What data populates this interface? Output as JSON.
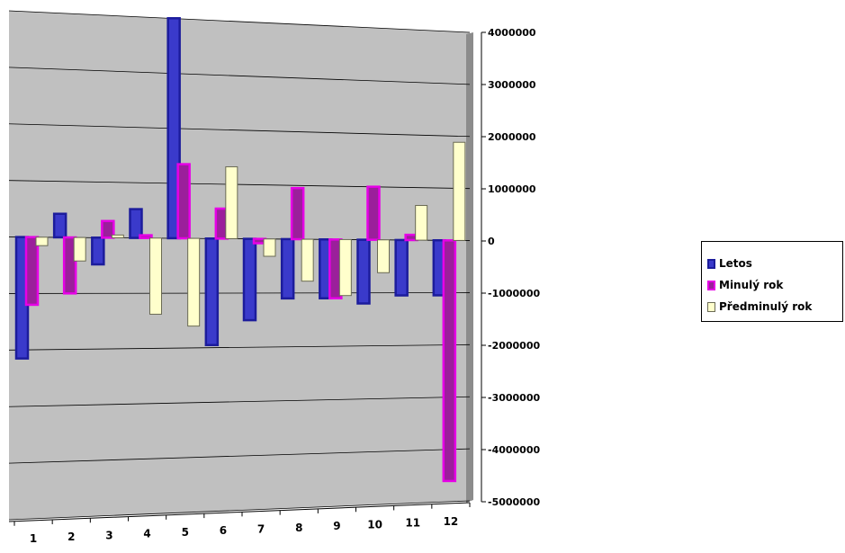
{
  "chart_data": {
    "type": "bar",
    "categories": [
      "1",
      "2",
      "3",
      "4",
      "5",
      "6",
      "7",
      "8",
      "9",
      "10",
      "11",
      "12"
    ],
    "series": [
      {
        "name": "Letos",
        "color": "#1c1c9c",
        "fill": "#3a3acb",
        "values": [
          -2150000,
          420000,
          -480000,
          520000,
          4000000,
          -1950000,
          -1500000,
          -1100000,
          -1100000,
          -1200000,
          -1050000,
          -1050000
        ]
      },
      {
        "name": "Minulý rok",
        "color": "#e600e6",
        "fill": "#9b1f9b",
        "values": [
          -1200000,
          -1000000,
          300000,
          50000,
          1350000,
          550000,
          -80000,
          950000,
          -1100000,
          1000000,
          100000,
          -4600000
        ]
      },
      {
        "name": "Předminulý rok",
        "color": "#6b6b55",
        "fill": "#ffffcc",
        "values": [
          -150000,
          -420000,
          50000,
          -1380000,
          -1600000,
          1320000,
          -320000,
          -780000,
          -1050000,
          -620000,
          660000,
          1880000
        ]
      }
    ],
    "ylim": [
      -5000000,
      4000000
    ],
    "yticks": [
      "4000000",
      "3000000",
      "2000000",
      "1000000",
      "0",
      "-1000000",
      "-2000000",
      "-3000000",
      "-4000000",
      "-5000000"
    ],
    "grid": true,
    "legend": "right",
    "title": "",
    "xlabel": "",
    "ylabel": ""
  },
  "legend": {
    "items": [
      "Letos",
      "Minulý rok",
      "Předminulý rok"
    ]
  }
}
